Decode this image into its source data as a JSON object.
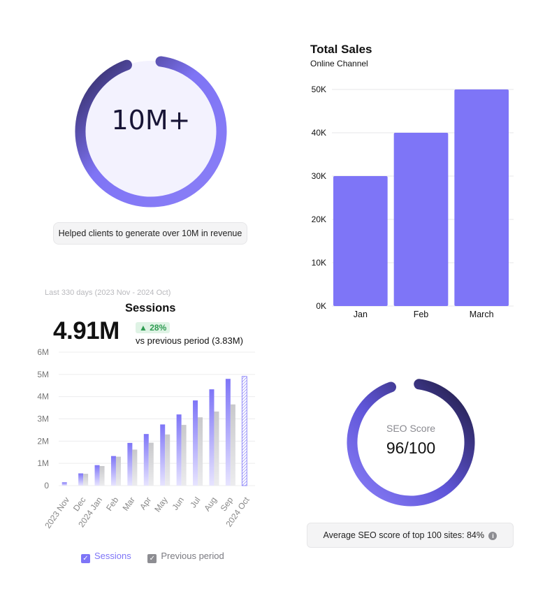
{
  "revenue_card": {
    "metric": "10M+",
    "caption": "Helped clients to generate over 10M in revenue",
    "colors": {
      "ring_start": "#7f74f5",
      "ring_end": "#2a2455",
      "fill": "#f3f2fe"
    }
  },
  "seo_card": {
    "label": "SEO Score",
    "score_text": "96/100",
    "score_fraction": 0.96,
    "caption": "Average SEO score of top 100 sites: 84%",
    "info_icon": "info-icon",
    "colors": {
      "ring_start": "#7f74f5",
      "ring_end": "#1f1b40"
    }
  },
  "sessions_card": {
    "range": "Last 330 days (2023 Nov - 2024 Oct)",
    "title": "Sessions",
    "total": "4.91M",
    "change_icon": "triangle-up-icon",
    "change": "28%",
    "comparison": "vs previous period (3.83M)"
  },
  "chart_data": [
    {
      "type": "bar",
      "title": "Total Sales",
      "subtitle": "Online Channel",
      "categories": [
        "Jan",
        "Feb",
        "March"
      ],
      "values": [
        30000,
        40000,
        50000
      ],
      "ylim": [
        0,
        50000
      ],
      "yticks": [
        0,
        10000,
        20000,
        30000,
        40000,
        50000
      ],
      "ytick_labels": [
        "0K",
        "10K",
        "20K",
        "30K",
        "40K",
        "50K"
      ],
      "grid": true,
      "color": "#7e75f7"
    },
    {
      "type": "bar",
      "categories": [
        "2023 Nov",
        "Dec",
        "2024 Jan",
        "Feb",
        "Mar",
        "Apr",
        "May",
        "Jun",
        "Jul",
        "Aug",
        "Sep",
        "2024 Oct"
      ],
      "series": [
        {
          "name": "Sessions",
          "values": [
            0.15,
            0.55,
            0.92,
            1.33,
            1.92,
            2.32,
            2.75,
            3.2,
            3.83,
            4.33,
            4.8,
            4.91
          ],
          "color": "#7e75f7"
        },
        {
          "name": "Previous period",
          "values": [
            null,
            0.53,
            0.88,
            1.3,
            1.62,
            1.93,
            2.3,
            2.73,
            3.07,
            3.33,
            3.65,
            null
          ],
          "color": "#cfcfd2"
        }
      ],
      "ylim": [
        0,
        6
      ],
      "yticks": [
        0,
        1,
        2,
        3,
        4,
        5,
        6
      ],
      "ytick_labels": [
        "0",
        "1M",
        "2M",
        "3M",
        "4M",
        "5M",
        "6M"
      ],
      "grid": true,
      "legend": "bottom"
    }
  ]
}
